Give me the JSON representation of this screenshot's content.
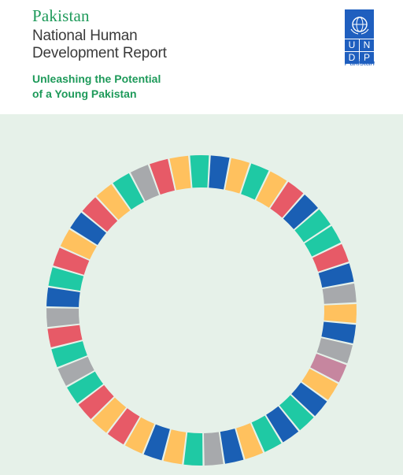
{
  "title": {
    "country": "Pakistan",
    "line1": "National Human",
    "line2": "Development Report"
  },
  "subtitle": {
    "line1": "Unleashing the Potential",
    "line2": "of a Young Pakistan"
  },
  "logo": {
    "letters": [
      "U",
      "N",
      "D",
      "P"
    ],
    "country": "Pakistan",
    "emblem_icon": "un-emblem-icon"
  },
  "colors": {
    "green_text": "#1e9a5a",
    "undp_blue": "#1f5fbf",
    "background": "#e6f1e9",
    "ring_palette": [
      "#1a5fb4",
      "#1fc9a4",
      "#ffc15e",
      "#e75a67",
      "#a7a9ac",
      "#c6869f"
    ]
  },
  "ring_segments": [
    "#1fc9a4",
    "#1a5fb4",
    "#ffc15e",
    "#1fc9a4",
    "#ffc15e",
    "#e75a67",
    "#1a5fb4",
    "#1fc9a4",
    "#1fc9a4",
    "#e75a67",
    "#1a5fb4",
    "#a7a9ac",
    "#ffc15e",
    "#1a5fb4",
    "#a7a9ac",
    "#c6869f",
    "#ffc15e",
    "#1a5fb4",
    "#1fc9a4",
    "#1a5fb4",
    "#1fc9a4",
    "#ffc15e",
    "#1a5fb4",
    "#a7a9ac",
    "#1fc9a4",
    "#ffc15e",
    "#1a5fb4",
    "#ffc15e",
    "#e75a67",
    "#ffc15e",
    "#e75a67",
    "#1fc9a4",
    "#a7a9ac",
    "#1fc9a4",
    "#e75a67",
    "#a7a9ac",
    "#1a5fb4",
    "#1fc9a4",
    "#e75a67",
    "#ffc15e",
    "#1a5fb4",
    "#e75a67",
    "#ffc15e",
    "#1fc9a4",
    "#a7a9ac",
    "#e75a67",
    "#ffc15e"
  ]
}
